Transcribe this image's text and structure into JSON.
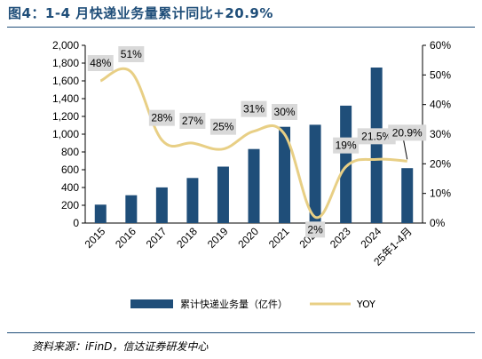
{
  "header": {
    "title": "图4：1-4 月快递业务量累计同比+20.9%",
    "source": "资料来源：iFinD，信达证券研发中心"
  },
  "colors": {
    "bar": "#1f4e79",
    "line": "#e8cf85",
    "accent": "#1f4e79"
  },
  "chart_data": {
    "type": "bar",
    "categories": [
      "2015",
      "2016",
      "2017",
      "2018",
      "2019",
      "2020",
      "2021",
      "2022",
      "2023",
      "2024",
      "25年1-4月"
    ],
    "series": [
      {
        "name": "累计快递业务量（亿件）",
        "type": "bar",
        "axis": "left",
        "values": [
          207,
          313,
          401,
          507,
          635,
          833,
          1083,
          1106,
          1321,
          1750,
          618
        ]
      },
      {
        "name": "YOY",
        "type": "line",
        "axis": "right",
        "values": [
          48,
          51,
          28,
          27,
          25,
          31,
          30,
          2,
          19,
          21.5,
          20.9
        ],
        "labels": [
          "48%",
          "51%",
          "28%",
          "27%",
          "25%",
          "31%",
          "30%",
          "2%",
          "19%",
          "21.5%",
          "20.9%"
        ]
      }
    ],
    "y_left": {
      "ticks": [
        "0",
        "200",
        "400",
        "600",
        "800",
        "1,000",
        "1,200",
        "1,400",
        "1,600",
        "1,800",
        "2,000"
      ],
      "lim": [
        0,
        2000
      ]
    },
    "y_right": {
      "ticks": [
        "0%",
        "10%",
        "20%",
        "30%",
        "40%",
        "50%",
        "60%"
      ],
      "lim": [
        0,
        60
      ]
    },
    "legend_position": "bottom",
    "grid": false
  }
}
